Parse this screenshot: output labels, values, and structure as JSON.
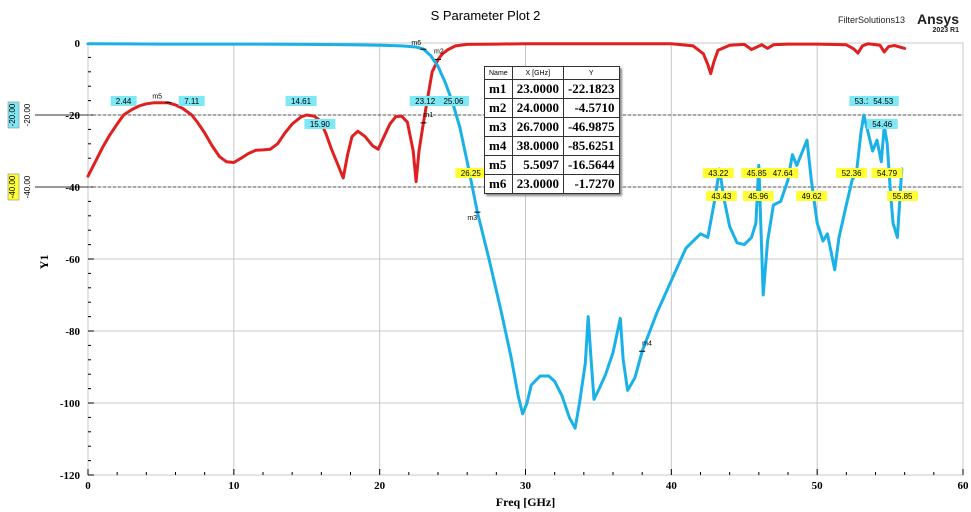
{
  "title": "S Parameter Plot 2",
  "brand": {
    "app": "FilterSolutions13",
    "name": "Ansys",
    "version": "2023 R1"
  },
  "colors": {
    "series_red": "#e02020",
    "series_blue": "#1ab1e8",
    "label_cyan": "#7fe8f5",
    "label_yellow": "#ffff33",
    "grid": "#c8c8c8"
  },
  "marker_table": {
    "headers": [
      "Name",
      "X [GHz]",
      "Y"
    ],
    "rows": [
      [
        "m1",
        "23.0000",
        "-22.1823"
      ],
      [
        "m2",
        "24.0000",
        "-4.5710"
      ],
      [
        "m3",
        "26.7000",
        "-46.9875"
      ],
      [
        "m4",
        "38.0000",
        "-85.6251"
      ],
      [
        "m5",
        "5.5097",
        "-16.5644"
      ],
      [
        "m6",
        "23.0000",
        "-1.7270"
      ]
    ]
  },
  "chart_data": {
    "type": "line",
    "title": "S Parameter Plot 2",
    "xlabel": "Freq [GHz]",
    "ylabel": "Y1",
    "xlim": [
      0,
      60
    ],
    "ylim": [
      -120,
      0
    ],
    "xticks": [
      "0",
      "10",
      "20",
      "30",
      "40",
      "50",
      "60"
    ],
    "yticks": [
      "0",
      "-20",
      "-40",
      "-60",
      "-80",
      "-100",
      "-120"
    ],
    "grid": true,
    "hlines": [
      {
        "y": -20,
        "label": "-20.00",
        "label_color": "#7fe8f5",
        "side_label": "-20.00"
      },
      {
        "y": -40,
        "label": "-40.00",
        "label_color": "#ffff33",
        "side_label": "-40.00"
      }
    ],
    "series": [
      {
        "color": "#e02020",
        "x": [
          0,
          0.5,
          1,
          1.5,
          2,
          2.44,
          3,
          3.5,
          4,
          4.5,
          5,
          5.5,
          6,
          6.5,
          7.11,
          7.5,
          8,
          8.5,
          9,
          9.5,
          10,
          10.5,
          11,
          11.5,
          12,
          12.5,
          13,
          13.5,
          14,
          14.61,
          15,
          15.5,
          15.9,
          16.3,
          16.7,
          17.1,
          17.5,
          17.8,
          18.1,
          18.5,
          19,
          19.5,
          19.9,
          20.3,
          20.7,
          21.1,
          21.5,
          21.9,
          22.3,
          22.5,
          22.7,
          23,
          23.3,
          23.6,
          24,
          24.3,
          24.7,
          25.2,
          26,
          28,
          30,
          35,
          40,
          41.5,
          42.2,
          42.5,
          42.7,
          42.9,
          43.2,
          44,
          45,
          45.5,
          46.2,
          46.6,
          47,
          48,
          50,
          52,
          52.5,
          52.8,
          53.1,
          53.5,
          54.3,
          54.6,
          54.9,
          55.3,
          56
        ],
        "y": [
          -37,
          -33,
          -29,
          -25.5,
          -22.5,
          -20,
          -18.5,
          -17.5,
          -16.9,
          -16.6,
          -16.6,
          -16.6,
          -17.2,
          -18.2,
          -20,
          -22,
          -25,
          -28.5,
          -31.5,
          -33,
          -33.2,
          -32,
          -30.7,
          -29.8,
          -29.7,
          -29.5,
          -28,
          -25,
          -22.5,
          -20.5,
          -20,
          -20.3,
          -21.5,
          -25,
          -29.5,
          -33.5,
          -37.5,
          -31,
          -26,
          -24.5,
          -26,
          -28.5,
          -29.5,
          -26,
          -22.5,
          -20.5,
          -20.3,
          -22,
          -30,
          -38.5,
          -30,
          -22.2,
          -15,
          -8,
          -4.6,
          -3,
          -1.8,
          -0.8,
          -0.4,
          -0.3,
          -0.2,
          -0.2,
          -0.2,
          -0.8,
          -3,
          -6,
          -8.5,
          -5.5,
          -2,
          -0.6,
          -0.4,
          -1.8,
          -0.5,
          -1.5,
          -0.5,
          -0.3,
          -0.3,
          -0.5,
          -1.6,
          -2.8,
          -0.8,
          -0.2,
          -0.6,
          -2.5,
          -1,
          -0.7,
          -1.5
        ]
      },
      {
        "color": "#1ab1e8",
        "x": [
          0,
          5,
          10,
          15,
          18,
          20,
          21.5,
          22.5,
          23,
          23.5,
          24,
          24.5,
          25,
          25.5,
          26,
          26.7,
          27.5,
          28.3,
          29,
          29.5,
          29.8,
          30.1,
          30.4,
          31,
          31.6,
          32,
          32.5,
          33,
          33.4,
          33.7,
          34.1,
          34.3,
          34.5,
          34.7,
          35,
          35.5,
          36,
          36.5,
          36.7,
          37,
          37.5,
          38,
          39,
          40,
          41,
          42,
          42.5,
          43,
          43.3,
          43.6,
          44,
          44.5,
          45,
          45.5,
          45.8,
          46,
          46.3,
          46.6,
          47,
          47.5,
          48,
          48.3,
          48.6,
          49,
          49.3,
          49.6,
          50,
          50.4,
          50.7,
          51,
          51.2,
          51.5,
          52,
          52.4,
          52.7,
          53,
          53.2,
          53.5,
          53.8,
          54.1,
          54.4,
          54.6,
          54.8,
          55,
          55.2,
          55.5,
          55.8
        ],
        "y": [
          -0.2,
          -0.3,
          -0.3,
          -0.4,
          -0.5,
          -0.6,
          -0.8,
          -1.1,
          -1.7,
          -3.5,
          -6.5,
          -11,
          -16.5,
          -23.5,
          -33,
          -47,
          -60,
          -74,
          -87,
          -98,
          -103,
          -100,
          -95,
          -92.5,
          -92.5,
          -94,
          -98,
          -104,
          -107,
          -100,
          -89,
          -76,
          -88,
          -99,
          -96.5,
          -92,
          -86,
          -76.5,
          -88,
          -96.5,
          -93,
          -85.6,
          -75,
          -66,
          -57,
          -53,
          -54,
          -43,
          -35,
          -43,
          -51,
          -55.5,
          -56,
          -54,
          -50,
          -34,
          -70,
          -55,
          -45,
          -44,
          -38,
          -31,
          -34,
          -30,
          -27,
          -38,
          -50,
          -55,
          -53,
          -59,
          -63,
          -54,
          -45,
          -38,
          -36,
          -25,
          -20,
          -25,
          -30,
          -27,
          -33,
          -23,
          -28,
          -40,
          -50,
          -54,
          -35
        ]
      }
    ],
    "markers": [
      {
        "name": "m1",
        "x": 23.0,
        "y": -22.1823,
        "series": 0
      },
      {
        "name": "m2",
        "x": 24.0,
        "y": -4.571,
        "series": 0
      },
      {
        "name": "m3",
        "x": 26.7,
        "y": -46.9875,
        "series": 1
      },
      {
        "name": "m4",
        "x": 38.0,
        "y": -85.6251,
        "series": 1
      },
      {
        "name": "m5",
        "x": 5.5097,
        "y": -16.5644,
        "series": 0
      },
      {
        "name": "m6",
        "x": 23.0,
        "y": -1.727,
        "series": 1
      }
    ],
    "crossing_labels": [
      {
        "text": "2.44",
        "x": 2.44,
        "y": -20,
        "style": "cyan"
      },
      {
        "text": "7.11",
        "x": 7.11,
        "y": -20,
        "style": "cyan"
      },
      {
        "text": "14.61",
        "x": 14.61,
        "y": -20,
        "style": "cyan"
      },
      {
        "text": "15.90",
        "x": 15.9,
        "y": -20,
        "style": "cyan"
      },
      {
        "text": "23.12",
        "x": 23.12,
        "y": -20,
        "style": "cyan"
      },
      {
        "text": "25.06",
        "x": 25.06,
        "y": -20,
        "style": "cyan"
      },
      {
        "text": "53.1",
        "x": 53.1,
        "y": -20,
        "style": "cyan"
      },
      {
        "text": "54.53",
        "x": 54.53,
        "y": -20,
        "style": "cyan"
      },
      {
        "text": "54.46",
        "x": 54.46,
        "y": -20,
        "style": "cyan"
      },
      {
        "text": "26.25",
        "x": 26.25,
        "y": -40,
        "style": "yellow"
      },
      {
        "text": "43.22",
        "x": 43.22,
        "y": -40,
        "style": "yellow"
      },
      {
        "text": "43.43",
        "x": 43.43,
        "y": -40,
        "style": "yellow"
      },
      {
        "text": "45.85",
        "x": 45.85,
        "y": -40,
        "style": "yellow"
      },
      {
        "text": "45.96",
        "x": 45.96,
        "y": -40,
        "style": "yellow"
      },
      {
        "text": "47.64",
        "x": 47.64,
        "y": -40,
        "style": "yellow"
      },
      {
        "text": "49.62",
        "x": 49.62,
        "y": -40,
        "style": "yellow"
      },
      {
        "text": "52.36",
        "x": 52.36,
        "y": -40,
        "style": "yellow"
      },
      {
        "text": "54.79",
        "x": 54.79,
        "y": -40,
        "style": "yellow"
      },
      {
        "text": "55.85",
        "x": 55.85,
        "y": -40,
        "style": "yellow"
      }
    ]
  }
}
